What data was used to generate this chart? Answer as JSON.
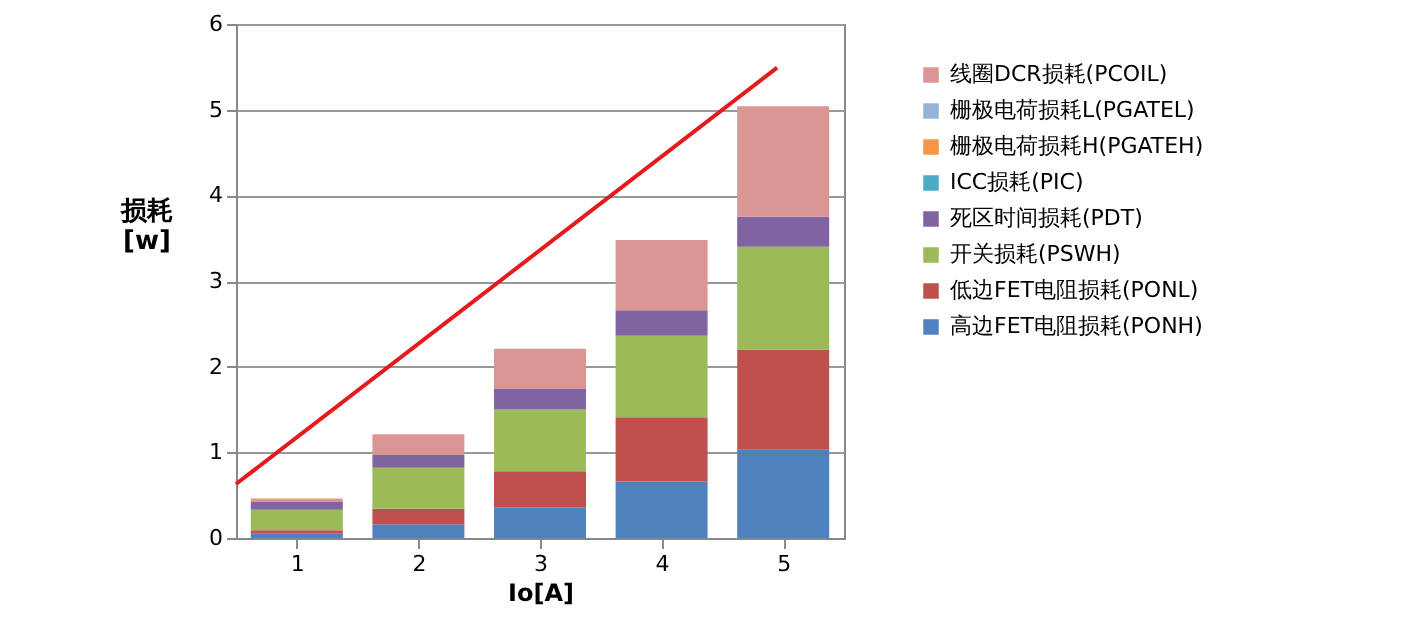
{
  "chart_data": {
    "type": "bar",
    "stacked": true,
    "xlabel": "Io[A]",
    "ylabel": "损耗\n[w]",
    "x": [
      1,
      2,
      3,
      4,
      5
    ],
    "xlim": [
      0.5,
      5.5
    ],
    "xticks": [
      1,
      2,
      3,
      4,
      5
    ],
    "ylim": [
      0,
      6
    ],
    "yticks": [
      0,
      1,
      2,
      3,
      4,
      5,
      6
    ],
    "grid": "y",
    "legend": "right",
    "series": [
      {
        "name": "高边FET电阻损耗(PONH)",
        "color": "#4f81bd",
        "values": [
          0.05,
          0.16,
          0.36,
          0.66,
          1.03
        ]
      },
      {
        "name": "低边FET电阻损耗(PONL)",
        "color": "#c0504d",
        "values": [
          0.04,
          0.18,
          0.42,
          0.75,
          1.17
        ]
      },
      {
        "name": "开关损耗(PSWH)",
        "color": "#9bbb59",
        "values": [
          0.24,
          0.48,
          0.72,
          0.95,
          1.2
        ]
      },
      {
        "name": "死区时间损耗(PDT)",
        "color": "#8064a2",
        "values": [
          0.09,
          0.15,
          0.24,
          0.3,
          0.35
        ]
      },
      {
        "name": "ICC损耗(PIC)",
        "color": "#4bacc6",
        "values": [
          0,
          0,
          0,
          0,
          0
        ]
      },
      {
        "name": "栅极电荷损耗H(PGATEH)",
        "color": "#f79646",
        "values": [
          0,
          0,
          0,
          0,
          0
        ]
      },
      {
        "name": "栅极电荷损耗L(PGATEL)",
        "color": "#95b3d7",
        "values": [
          0,
          0,
          0,
          0,
          0
        ]
      },
      {
        "name": "线圈DCR损耗(PCOIL)",
        "color": "#d99694",
        "values": [
          0.04,
          0.24,
          0.47,
          0.82,
          1.29
        ]
      },
      {
        "type": "line",
        "color": "#e41a1c",
        "x": [
          0.5,
          4.95
        ],
        "values": [
          0.63,
          5.49
        ],
        "marker": "none"
      }
    ]
  }
}
